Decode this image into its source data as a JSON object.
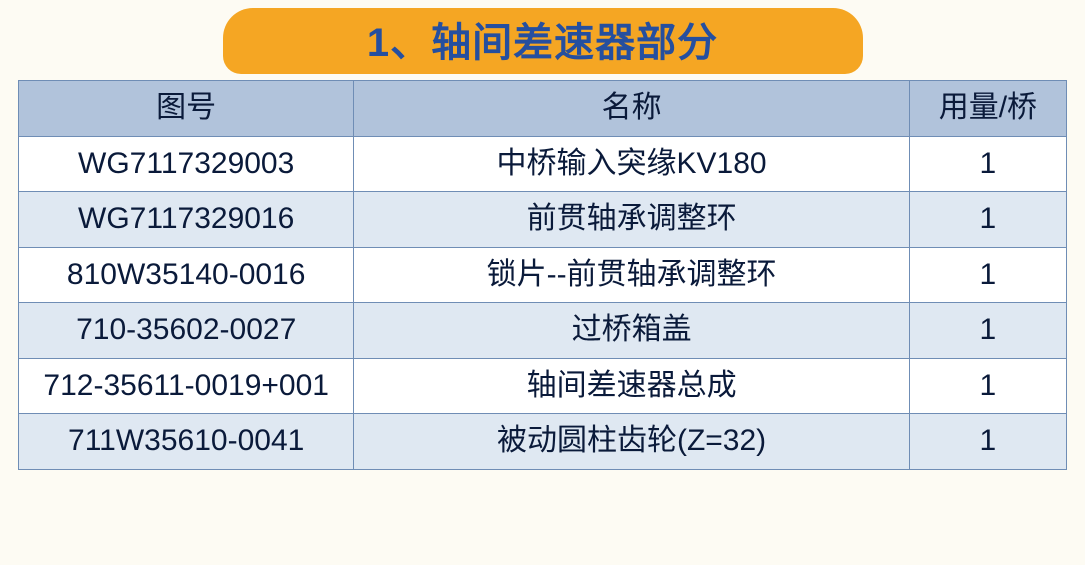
{
  "colors": {
    "page_bg": "#fdfbf3",
    "pill_bg": "#F5A623",
    "title_color": "#254F9F",
    "border": "#6f8db5",
    "head_bg": "#b1c3db",
    "alt_bg": "#dfe8f2",
    "row_bg": "#ffffff",
    "text": "#0a1a3a"
  },
  "title": "1、轴间差速器部分",
  "title_fontsize": 40,
  "cell_fontsize": 30,
  "table": {
    "col_widths_pct": [
      32,
      53,
      15
    ],
    "columns": [
      "图号",
      "名称",
      "用量/桥"
    ],
    "rows": [
      [
        "WG7117329003",
        "中桥输入突缘KV180",
        "1"
      ],
      [
        "WG7117329016",
        "前贯轴承调整环",
        "1"
      ],
      [
        "810W35140-0016",
        "锁片--前贯轴承调整环",
        "1"
      ],
      [
        "710-35602-0027",
        "过桥箱盖",
        "1"
      ],
      [
        "712-35611-0019+001",
        "轴间差速器总成",
        "1"
      ],
      [
        "711W35610-0041",
        "被动圆柱齿轮(Z=32)",
        "1"
      ]
    ],
    "alt_start": 1
  }
}
